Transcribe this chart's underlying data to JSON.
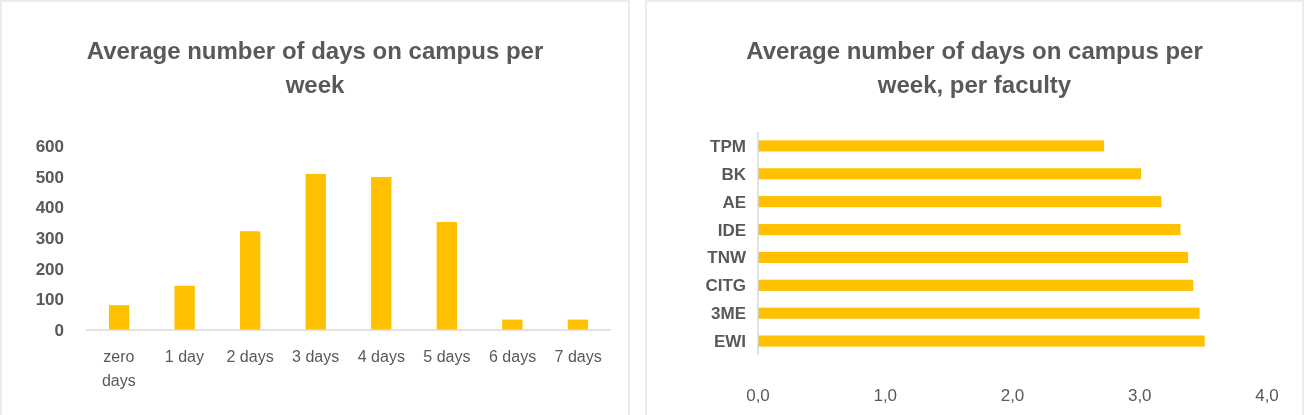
{
  "chart_data": [
    {
      "type": "bar",
      "title": "Average number of days on campus per week",
      "categories": [
        "zero days",
        "1 day",
        "2 days",
        "3 days",
        "4 days",
        "5 days",
        "6 days",
        "7 days"
      ],
      "values": [
        81,
        144,
        322,
        509,
        499,
        352,
        34,
        34
      ],
      "color": "#ffc000",
      "ylim": [
        0,
        600
      ],
      "yticks": [
        0,
        100,
        200,
        300,
        400,
        500,
        600
      ],
      "grid": false
    },
    {
      "type": "bar",
      "orientation": "horizontal",
      "title": "Average number of days on campus per week, per faculty",
      "categories": [
        "TPM",
        "BK",
        "AE",
        "IDE",
        "TNW",
        "CITG",
        "3ME",
        "EWI"
      ],
      "values": [
        2.72,
        3.01,
        3.17,
        3.32,
        3.38,
        3.42,
        3.47,
        3.51
      ],
      "color": "#ffc000",
      "xlim": [
        0,
        4
      ],
      "xticks": [
        {
          "value": 0,
          "label": "0,0"
        },
        {
          "value": 1,
          "label": "1,0"
        },
        {
          "value": 2,
          "label": "2,0"
        },
        {
          "value": 3,
          "label": "3,0"
        },
        {
          "value": 4,
          "label": "4,0"
        }
      ],
      "grid": false
    }
  ]
}
